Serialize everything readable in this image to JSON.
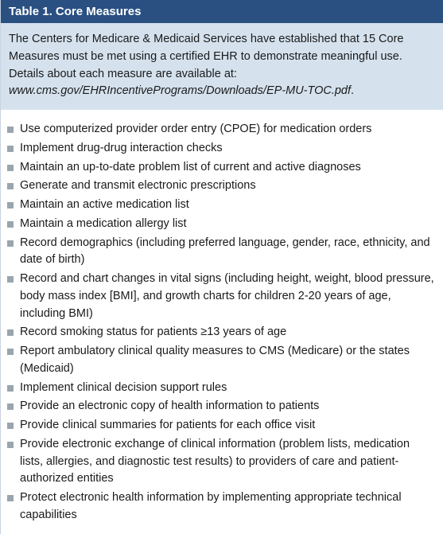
{
  "header": {
    "title": "Table 1. Core Measures"
  },
  "intro": {
    "text_before_url": "The Centers for Medicare & Medicaid Services have established that 15 Core Measures must be met using a certified EHR to demonstrate meaningful use. Details about each measure are available at: ",
    "url": "www.cms.gov/EHRIncentivePrograms/Downloads/EP-MU-TOC.pdf",
    "text_after_url": "."
  },
  "measures": [
    "Use computerized provider order entry (CPOE) for medication orders",
    "Implement drug-drug interaction checks",
    "Maintain an up-to-date problem list of current and active diagnoses",
    "Generate and transmit electronic prescriptions",
    "Maintain an active medication list",
    "Maintain a medication allergy list",
    "Record demographics (including preferred language, gender, race, ethnicity, and date of birth)",
    "Record and chart changes in vital signs (including height, weight, blood pressure, body mass index [BMI], and growth charts for children 2-20 years of age, including BMI)",
    "Record smoking status for patients ≥13 years of age",
    "Report ambulatory clinical quality measures to CMS (Medicare) or the states (Medicaid)",
    "Implement clinical decision support rules",
    "Provide an electronic copy of health information to patients",
    "Provide clinical summaries for patients for each office visit",
    "Provide electronic exchange of clinical information (problem lists, medication lists, allergies, and diagnostic test results) to providers of care and patient-authorized entities",
    "Protect electronic health information by implementing appropriate technical capabilities"
  ],
  "colors": {
    "header_bg": "#2a5082",
    "header_text": "#ffffff",
    "intro_bg": "#d5e2ee",
    "bullet": "#9aa5ad",
    "body_text": "#1a1a1a",
    "left_border": "#c8d4e0"
  }
}
